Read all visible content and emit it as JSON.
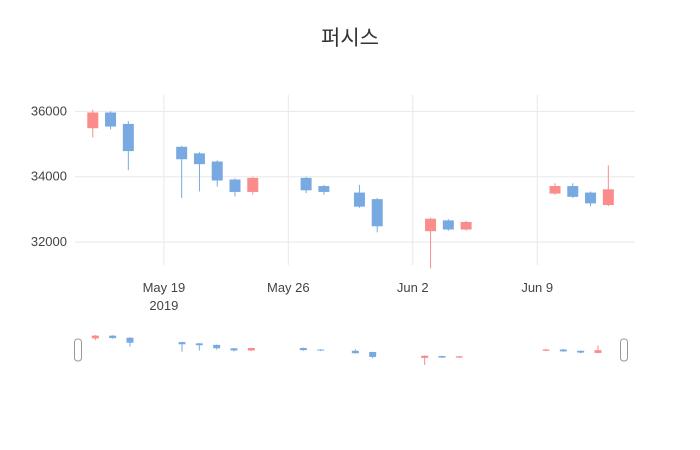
{
  "chart_data": {
    "type": "candlestick",
    "title": "퍼시스",
    "legend": "none",
    "grid": "on",
    "x_axis": {
      "range": [
        "2019-05-14",
        "2019-06-14T12:00"
      ],
      "ticks": [
        {
          "label": "May 19",
          "year_label": "2019",
          "date": "2019-05-19"
        },
        {
          "label": "May 26",
          "date": "2019-05-26"
        },
        {
          "label": "Jun 2",
          "date": "2019-06-02"
        },
        {
          "label": "Jun 9",
          "date": "2019-06-09"
        }
      ]
    },
    "y_axis": {
      "range": [
        31300,
        36500
      ],
      "ticks": [
        {
          "label": "36000",
          "value": 36000
        },
        {
          "label": "34000",
          "value": 34000
        },
        {
          "label": "32000",
          "value": 32000
        }
      ]
    },
    "colors": {
      "increasing": "#fa8c8c",
      "decreasing": "#78aae1",
      "grid": "#e8e8e8",
      "tick_text": "#444444",
      "title_text": "#333333",
      "slider_handle": "#999999",
      "background": "#ffffff"
    },
    "rangeslider": {
      "visible": true
    },
    "candles": [
      {
        "date": "2019-05-15",
        "open": 35500,
        "high": 36050,
        "low": 35200,
        "close": 35950
      },
      {
        "date": "2019-05-16",
        "open": 35950,
        "high": 36000,
        "low": 35450,
        "close": 35550
      },
      {
        "date": "2019-05-17",
        "open": 35600,
        "high": 35700,
        "low": 34200,
        "close": 34800
      },
      {
        "date": "2019-05-20",
        "open": 34900,
        "high": 34950,
        "low": 33350,
        "close": 34550
      },
      {
        "date": "2019-05-21",
        "open": 34700,
        "high": 34750,
        "low": 33550,
        "close": 34400
      },
      {
        "date": "2019-05-22",
        "open": 34450,
        "high": 34500,
        "low": 33700,
        "close": 33900
      },
      {
        "date": "2019-05-23",
        "open": 33900,
        "high": 33950,
        "low": 33400,
        "close": 33550
      },
      {
        "date": "2019-05-24",
        "open": 33550,
        "high": 34000,
        "low": 33450,
        "close": 33950
      },
      {
        "date": "2019-05-27",
        "open": 33950,
        "high": 34000,
        "low": 33500,
        "close": 33600
      },
      {
        "date": "2019-05-28",
        "open": 33700,
        "high": 33750,
        "low": 33450,
        "close": 33550
      },
      {
        "date": "2019-05-30",
        "open": 33500,
        "high": 33750,
        "low": 33050,
        "close": 33100
      },
      {
        "date": "2019-05-31",
        "open": 33300,
        "high": 33350,
        "low": 32300,
        "close": 32500
      },
      {
        "date": "2019-06-03",
        "open": 32350,
        "high": 32750,
        "low": 31200,
        "close": 32700
      },
      {
        "date": "2019-06-04",
        "open": 32650,
        "high": 32700,
        "low": 32350,
        "close": 32400
      },
      {
        "date": "2019-06-05",
        "open": 32400,
        "high": 32650,
        "low": 32350,
        "close": 32600
      },
      {
        "date": "2019-06-10",
        "open": 33500,
        "high": 33800,
        "low": 33450,
        "close": 33700
      },
      {
        "date": "2019-06-11",
        "open": 33700,
        "high": 33800,
        "low": 33350,
        "close": 33400
      },
      {
        "date": "2019-06-12",
        "open": 33500,
        "high": 33550,
        "low": 33100,
        "close": 33200
      },
      {
        "date": "2019-06-13",
        "open": 33150,
        "high": 34350,
        "low": 33100,
        "close": 33600
      }
    ]
  }
}
